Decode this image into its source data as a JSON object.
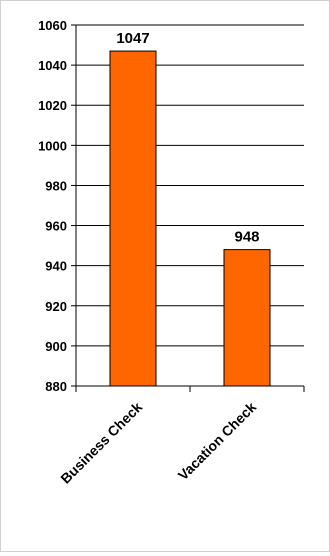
{
  "chart_data": {
    "type": "bar",
    "categories": [
      "Business Check",
      "Vacation Check"
    ],
    "values": [
      1047,
      948
    ],
    "data_labels": [
      "1047",
      "948"
    ],
    "title": "",
    "xlabel": "",
    "ylabel": "",
    "ylim": [
      880,
      1060
    ],
    "yticks": [
      880,
      900,
      920,
      940,
      960,
      980,
      1000,
      1020,
      1040,
      1060
    ],
    "ytick_labels": [
      "880",
      "900",
      "920",
      "940",
      "960",
      "980",
      "1000",
      "1020",
      "1040",
      "1060"
    ],
    "grid": true,
    "legend": "none",
    "colors": {
      "bar_fill": "#ff6600",
      "bar_stroke": "#000000",
      "gridline": "#000000",
      "axis": "#000000"
    }
  }
}
